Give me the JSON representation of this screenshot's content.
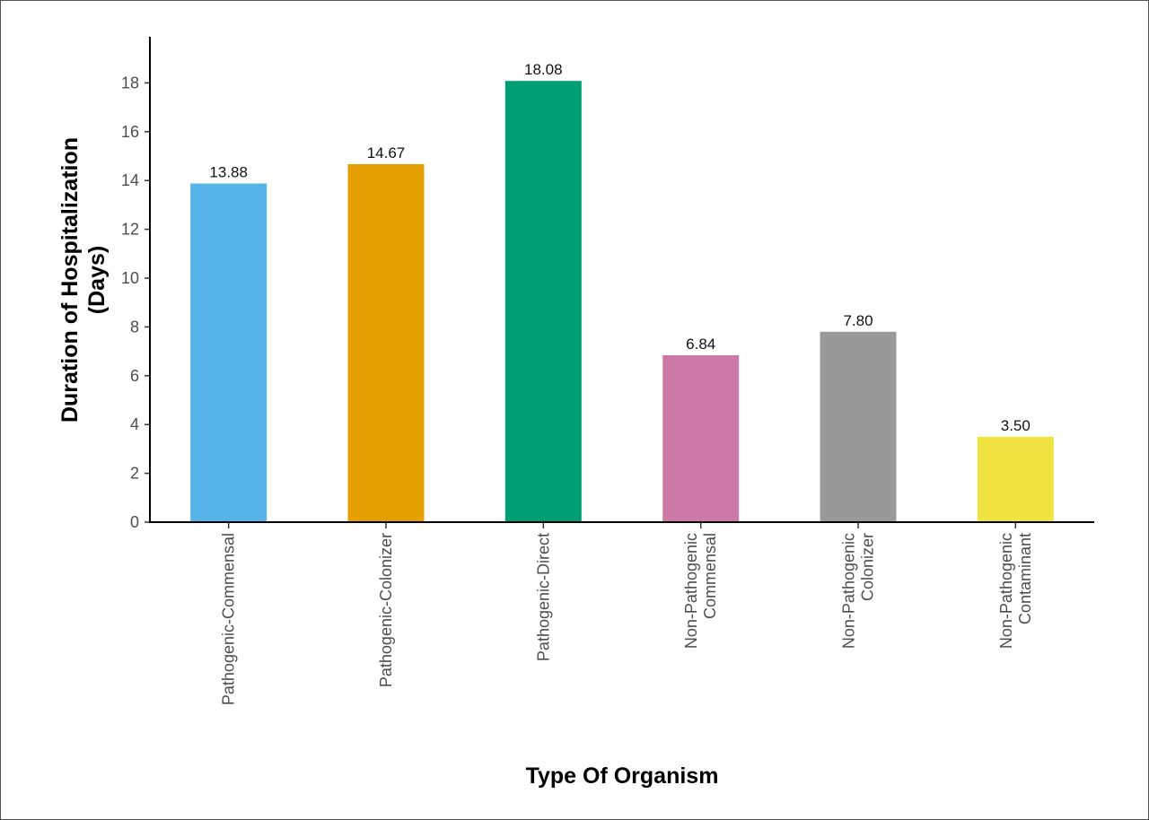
{
  "chart_data": {
    "type": "bar",
    "xlabel": "Type Of Organism",
    "ylabel_lines": [
      "Duration of Hospitalization",
      "(Days)"
    ],
    "categories": [
      [
        "Pathogenic-Commensal"
      ],
      [
        "Pathogenic-Colonizer"
      ],
      [
        "Pathogenic-Direct"
      ],
      [
        "Non-Pathogenic",
        "Commensal"
      ],
      [
        "Non-Pathogenic",
        "Colonizer"
      ],
      [
        "Non-Pathogenic",
        "Contaminant"
      ]
    ],
    "values": [
      13.88,
      14.67,
      18.08,
      6.84,
      7.8,
      3.5
    ],
    "value_labels": [
      "13.88",
      "14.67",
      "18.08",
      "6.84",
      "7.80",
      "3.50"
    ],
    "colors": [
      "#56B4E9",
      "#E69F00",
      "#009E73",
      "#CC79A7",
      "#999999",
      "#F0E442"
    ],
    "yticks": [
      0,
      2,
      4,
      6,
      8,
      10,
      12,
      14,
      16,
      18
    ],
    "ylim": [
      0,
      19.3
    ],
    "grid": false,
    "legend": "none"
  }
}
